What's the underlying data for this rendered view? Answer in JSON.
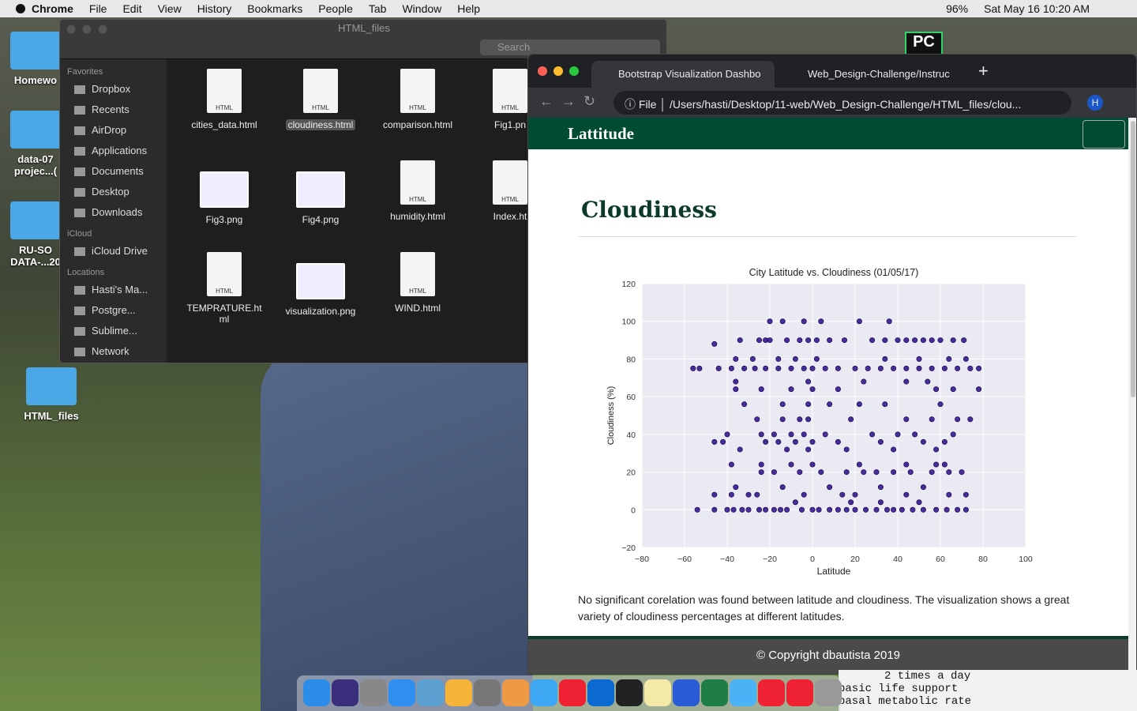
{
  "menubar": {
    "app": "Chrome",
    "items": [
      "File",
      "Edit",
      "View",
      "History",
      "Bookmarks",
      "People",
      "Tab",
      "Window",
      "Help"
    ],
    "battery": "96%",
    "datetime": "Sat May 16  10:20 AM"
  },
  "desktop": {
    "icons": [
      "Homewo",
      "data-07\nprojec...(",
      "RU-SO\nDATA-...20",
      "HTML_files"
    ],
    "app_badge": "PC"
  },
  "finder": {
    "title": "HTML_files",
    "search": "Search",
    "icon_text": "HTML",
    "sidebar": [
      {
        "heading": "Favorites",
        "items": [
          "Dropbox",
          "Recents",
          "AirDrop",
          "Applications",
          "Documents",
          "Desktop",
          "Downloads"
        ]
      },
      {
        "heading": "iCloud",
        "items": [
          "iCloud Drive"
        ]
      },
      {
        "heading": "Locations",
        "items": [
          "Hasti's Ma...",
          "Postgre...",
          "Sublime...",
          "Network"
        ]
      }
    ],
    "files": [
      "cities_data.html",
      "cloudiness.html",
      "comparison.html",
      "Fig1.pn",
      "Fig3.png",
      "Fig4.png",
      "humidity.html",
      "Index.ht",
      "TEMPRATURE.ht\nml",
      "visualization.png",
      "WIND.html"
    ]
  },
  "browser": {
    "tabs": [
      "Bootstrap Visualization Dashbo",
      "Web_Design-Challenge/Instruc"
    ],
    "scheme": "File",
    "url": "/Users/hasti/Desktop/11-web/Web_Design-Challenge/HTML_files/clou...",
    "avatar": "H",
    "page": {
      "brand": "Lattitude",
      "heading": "Cloudiness",
      "paragraph": "No significant corelation was found between latitude and cloudiness. The visualization shows a great variety of cloudiness percentages at different latitudes.",
      "footer": "© Copyright dbautista 2019"
    }
  },
  "terminal": [
    "2 times a day",
    "basic life support",
    "basal metabolic rate"
  ],
  "chart_data": {
    "type": "scatter",
    "title": "City Latitude vs. Cloudiness (01/05/17)",
    "x_label": "Latitude",
    "y_label": "Cloudiness (%)",
    "color": "#2a0a8c",
    "grid": true,
    "xlim": [
      -80,
      100
    ],
    "ylim": [
      -20,
      120
    ],
    "xticks": [
      {
        "value": -80,
        "label": "−80"
      },
      {
        "value": -60,
        "label": "−60"
      },
      {
        "value": -40,
        "label": "−40"
      },
      {
        "value": -20,
        "label": "−20"
      },
      0,
      20,
      40,
      60,
      80,
      100
    ],
    "yticks": [
      {
        "value": -20,
        "label": "−20"
      },
      0,
      20,
      40,
      60,
      80,
      100,
      120
    ],
    "x": [
      -54,
      -46,
      -40,
      -37,
      -33,
      -30,
      -25,
      -22,
      -18,
      -15,
      -12,
      -5,
      0,
      3,
      8,
      12,
      16,
      20,
      25,
      30,
      35,
      38,
      42,
      47,
      52,
      58,
      63,
      68,
      72,
      -20,
      -14,
      -4,
      4,
      22,
      36,
      -34,
      -25,
      -22,
      -20,
      -12,
      -6,
      -2,
      2,
      8,
      15,
      28,
      34,
      40,
      44,
      48,
      52,
      56,
      60,
      66,
      71,
      -56,
      -53,
      -44,
      -38,
      -32,
      -27,
      -22,
      -16,
      -10,
      -4,
      0,
      6,
      12,
      20,
      26,
      32,
      38,
      44,
      50,
      56,
      62,
      68,
      74,
      78,
      -36,
      -28,
      -16,
      -8,
      2,
      34,
      50,
      64,
      72,
      -46,
      -36,
      -24,
      -10,
      0,
      12,
      58,
      66,
      78,
      -36,
      -2,
      24,
      44,
      54,
      -32,
      -14,
      -2,
      8,
      22,
      34,
      60,
      -26,
      -14,
      -6,
      -2,
      18,
      44,
      56,
      68,
      74,
      -40,
      -24,
      -18,
      -10,
      -4,
      6,
      28,
      40,
      48,
      66,
      -46,
      -42,
      -22,
      -16,
      -8,
      0,
      12,
      32,
      52,
      62,
      -34,
      -12,
      -2,
      16,
      38,
      58,
      -38,
      -24,
      -10,
      0,
      22,
      44,
      58,
      62,
      -24,
      -18,
      -6,
      4,
      16,
      24,
      30,
      38,
      46,
      56,
      64,
      70,
      -36,
      -14,
      8,
      32,
      52,
      -46,
      -38,
      -30,
      -26,
      -4,
      14,
      20,
      44,
      64,
      72,
      -8,
      18,
      32,
      50
    ],
    "y": [
      0,
      0,
      0,
      0,
      0,
      0,
      0,
      0,
      0,
      0,
      0,
      0,
      0,
      0,
      0,
      0,
      0,
      0,
      0,
      0,
      0,
      0,
      0,
      0,
      0,
      0,
      0,
      0,
      0,
      100,
      100,
      100,
      100,
      100,
      100,
      90,
      90,
      90,
      90,
      90,
      90,
      90,
      90,
      90,
      90,
      90,
      90,
      90,
      90,
      90,
      90,
      90,
      90,
      90,
      90,
      75,
      75,
      75,
      75,
      75,
      75,
      75,
      75,
      75,
      75,
      75,
      75,
      75,
      75,
      75,
      75,
      75,
      75,
      75,
      75,
      75,
      75,
      75,
      75,
      80,
      80,
      80,
      80,
      80,
      80,
      80,
      80,
      80,
      88,
      64,
      64,
      64,
      64,
      64,
      64,
      64,
      64,
      68,
      68,
      68,
      68,
      68,
      56,
      56,
      56,
      56,
      56,
      56,
      56,
      48,
      48,
      48,
      48,
      48,
      48,
      48,
      48,
      48,
      40,
      40,
      40,
      40,
      40,
      40,
      40,
      40,
      40,
      40,
      36,
      36,
      36,
      36,
      36,
      36,
      36,
      36,
      36,
      36,
      32,
      32,
      32,
      32,
      32,
      32,
      24,
      24,
      24,
      24,
      24,
      24,
      24,
      24,
      20,
      20,
      20,
      20,
      20,
      20,
      20,
      20,
      20,
      20,
      20,
      20,
      12,
      12,
      12,
      12,
      12,
      8,
      8,
      8,
      8,
      8,
      8,
      8,
      8,
      8,
      8,
      4,
      4,
      4,
      4
    ]
  }
}
